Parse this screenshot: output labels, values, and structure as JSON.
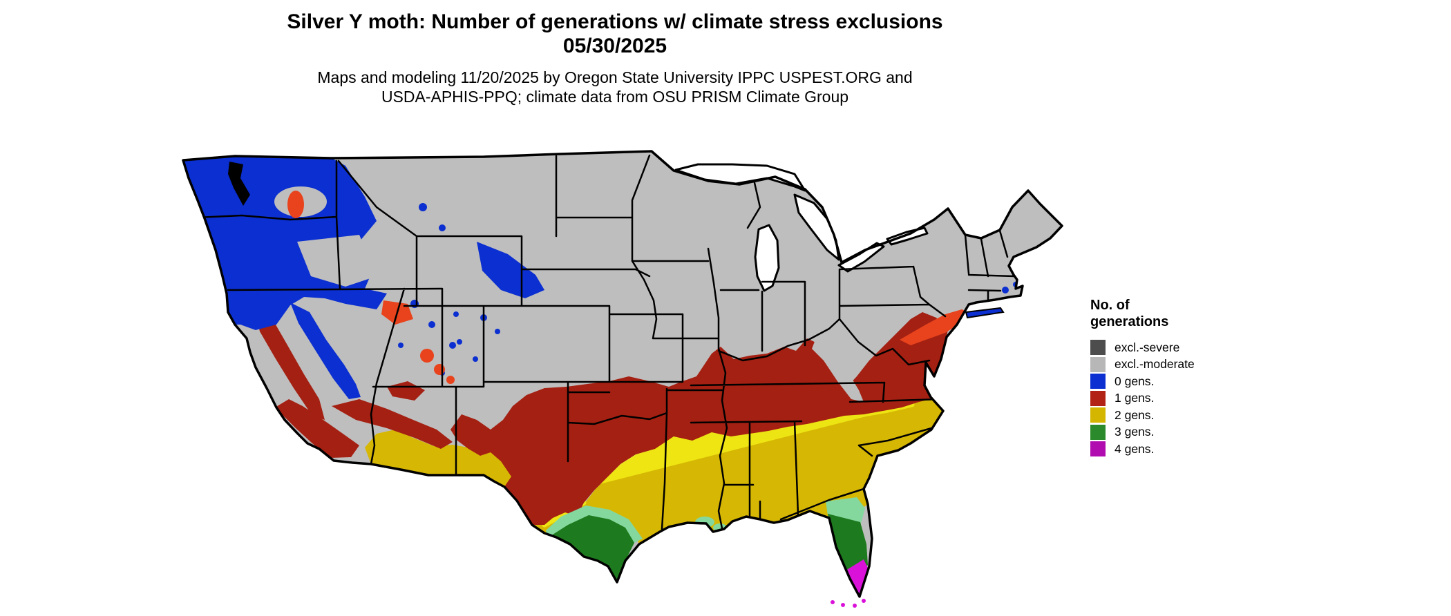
{
  "page": {
    "background": "#ffffff"
  },
  "title": {
    "line1": "Silver Y moth: Number of generations w/ climate stress exclusions",
    "line2": "05/30/2025"
  },
  "attribution": {
    "line1": "Maps and modeling 11/20/2025 by Oregon State University IPPC USPEST.ORG and",
    "line2": "USDA-APHIS-PPQ; climate data from OSU PRISM Climate Group"
  },
  "legend": {
    "title": "No. of generations",
    "items": [
      {
        "label": "excl.-severe",
        "color": "#4d4d4d"
      },
      {
        "label": "excl.-moderate",
        "color": "#b7b7b7"
      },
      {
        "label": "0 gens.",
        "color": "#0b2fd0"
      },
      {
        "label": "1 gens.",
        "color": "#b22315"
      },
      {
        "label": "2 gens.",
        "color": "#d4b500"
      },
      {
        "label": "3 gens.",
        "color": "#2b8a2b"
      },
      {
        "label": "4 gens.",
        "color": "#b00cb0"
      }
    ]
  },
  "map": {
    "name": "conus-silver-y-moth-generations",
    "colors": {
      "excl_moderate": "#bebebe",
      "gens0_blue": "#0b2fd0",
      "gens1_red": "#a42012",
      "gens2_yellow": "#d6b704",
      "gens2_bright": "#f2ee16",
      "gens3_green": "#1e7a1e",
      "gens3_mint": "#84d89e",
      "gens4_magenta": "#d911d9",
      "stress_orange": "#e8431c",
      "water_white": "#ffffff",
      "border_black": "#000000"
    }
  }
}
